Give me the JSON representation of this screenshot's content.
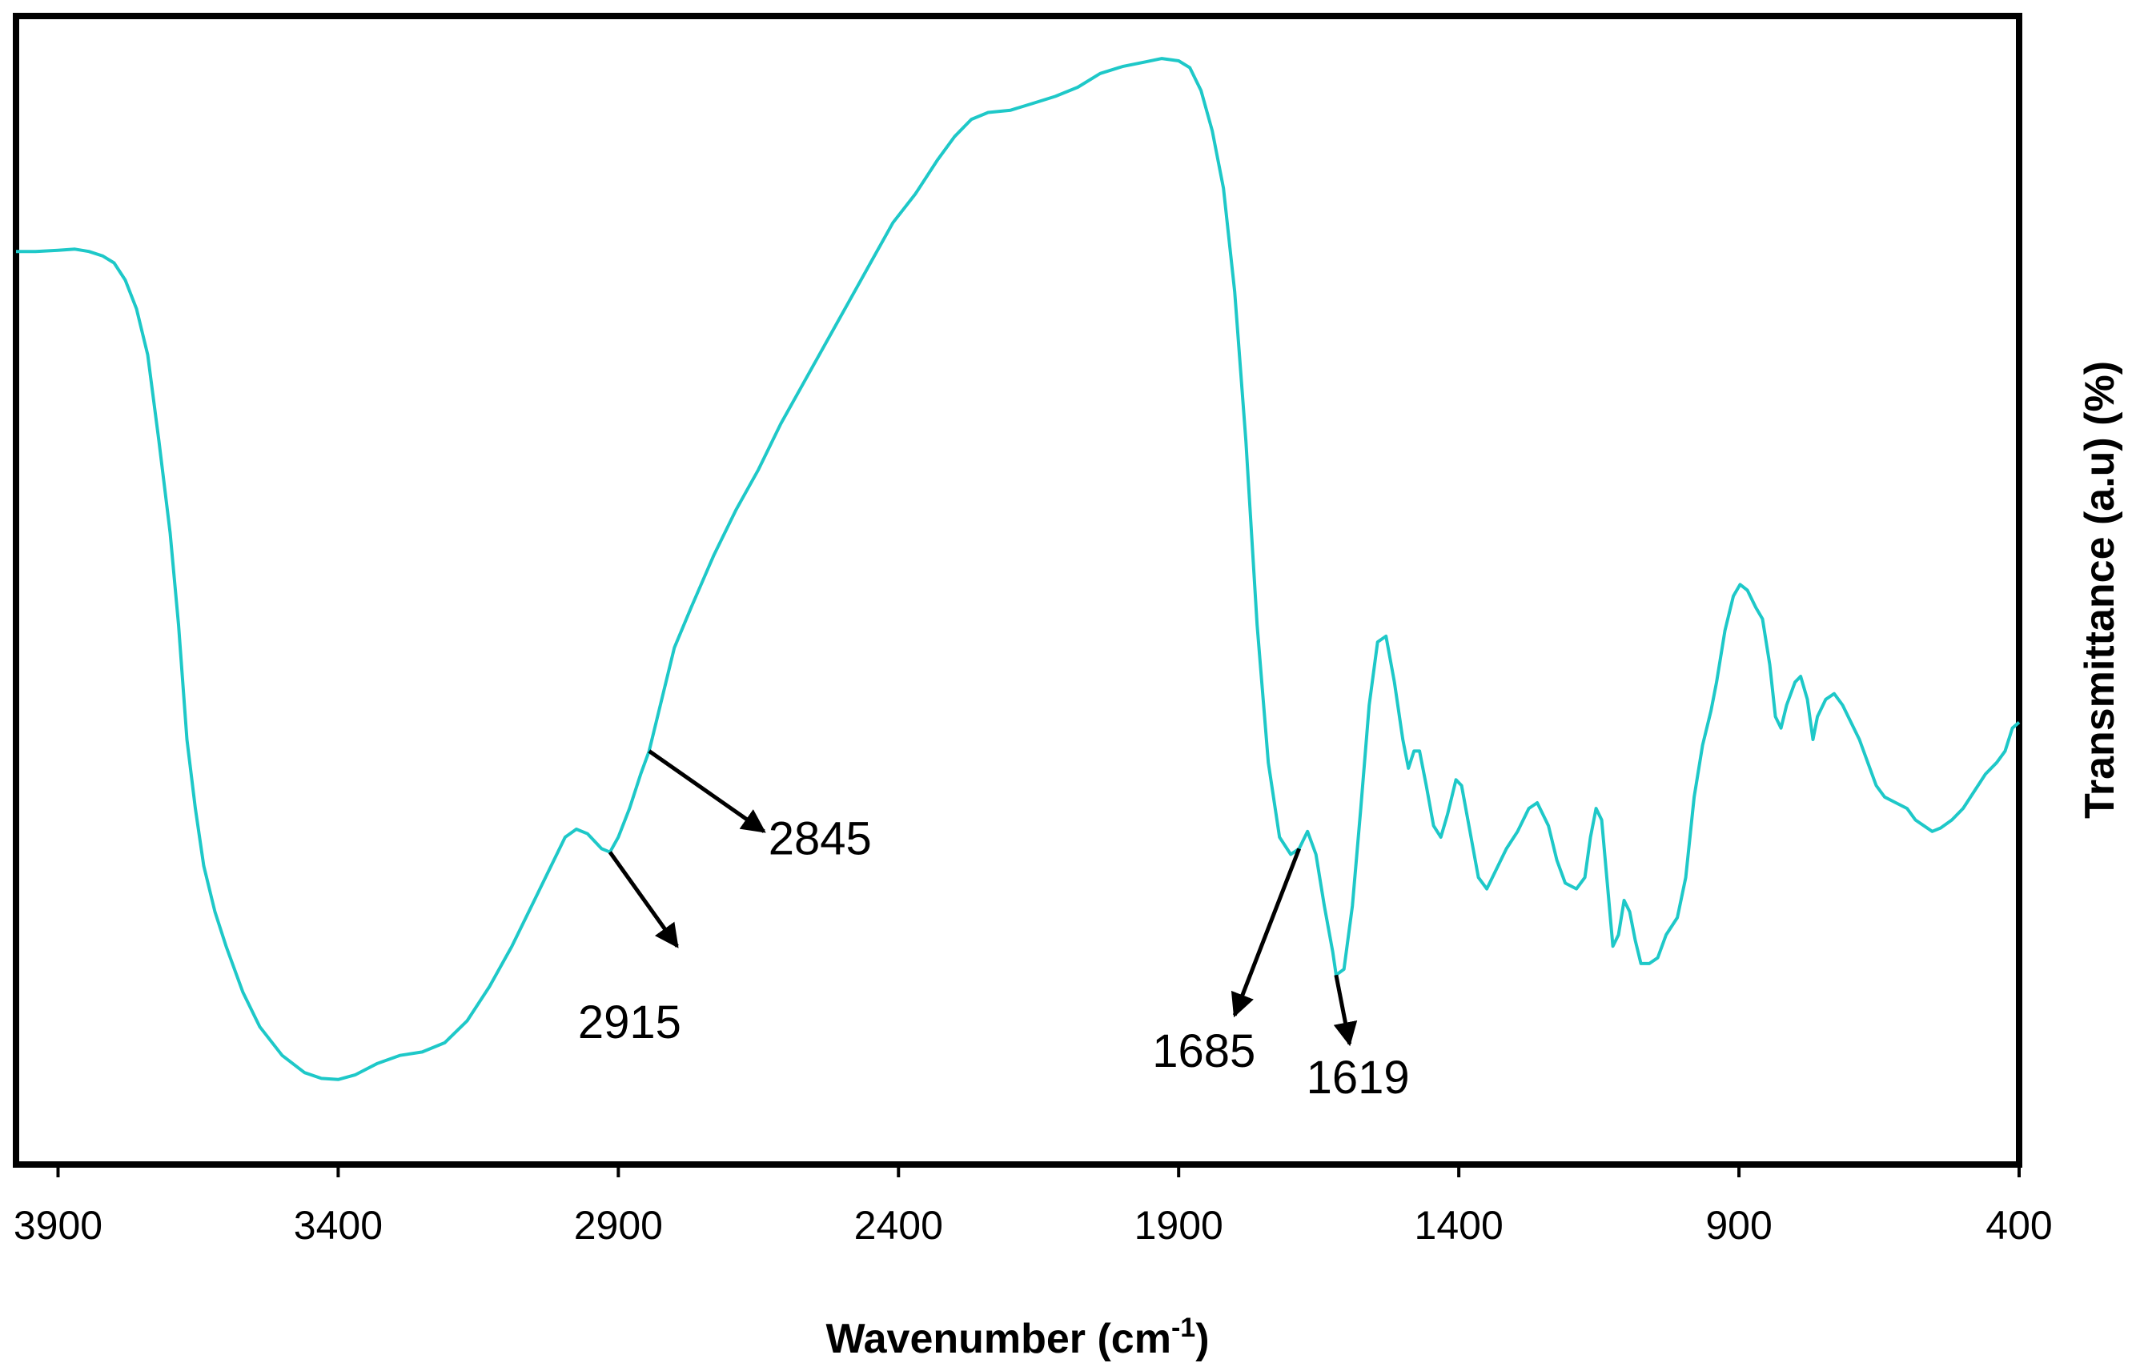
{
  "chart_data": {
    "type": "line",
    "xlabel": "Wavenumber (cm",
    "xlabel_superscript": "-1",
    "xlabel_close": ")",
    "ylabel": "Transmittance (a.u) (%)",
    "xlim": [
      3975,
      400
    ],
    "ylim": [
      0,
      100
    ],
    "x_reversed": true,
    "y_ticks_shown": false,
    "grid": false,
    "x_ticks": [
      3900,
      3400,
      2900,
      2400,
      1900,
      1400,
      900,
      400
    ],
    "x_tick_labels": [
      "3900",
      "3400",
      "2900",
      "2400",
      "1900",
      "1400",
      "900",
      "400"
    ],
    "series": [
      {
        "color": "#1ec8c8",
        "points": [
          [
            3975,
            79.5
          ],
          [
            3940,
            79.5
          ],
          [
            3900,
            79.6
          ],
          [
            3870,
            79.7
          ],
          [
            3845,
            79.5
          ],
          [
            3820,
            79.1
          ],
          [
            3800,
            78.5
          ],
          [
            3780,
            77.0
          ],
          [
            3760,
            74.5
          ],
          [
            3740,
            70.5
          ],
          [
            3720,
            63.0
          ],
          [
            3700,
            55.0
          ],
          [
            3685,
            47.0
          ],
          [
            3670,
            37.0
          ],
          [
            3655,
            31.0
          ],
          [
            3640,
            26.0
          ],
          [
            3620,
            22.0
          ],
          [
            3600,
            19.0
          ],
          [
            3570,
            15.0
          ],
          [
            3540,
            12.0
          ],
          [
            3500,
            9.5
          ],
          [
            3460,
            8.0
          ],
          [
            3430,
            7.5
          ],
          [
            3400,
            7.4
          ],
          [
            3370,
            7.8
          ],
          [
            3330,
            8.8
          ],
          [
            3290,
            9.5
          ],
          [
            3250,
            9.8
          ],
          [
            3210,
            10.6
          ],
          [
            3170,
            12.5
          ],
          [
            3130,
            15.5
          ],
          [
            3090,
            19.0
          ],
          [
            3050,
            23.0
          ],
          [
            3020,
            26.0
          ],
          [
            2995,
            28.5
          ],
          [
            2975,
            29.2
          ],
          [
            2955,
            28.8
          ],
          [
            2930,
            27.5
          ],
          [
            2915,
            27.2
          ],
          [
            2900,
            28.5
          ],
          [
            2880,
            31.0
          ],
          [
            2860,
            34.0
          ],
          [
            2845,
            36.0
          ],
          [
            2825,
            40.0
          ],
          [
            2800,
            45.0
          ],
          [
            2770,
            48.5
          ],
          [
            2730,
            53.0
          ],
          [
            2690,
            57.0
          ],
          [
            2650,
            60.5
          ],
          [
            2610,
            64.5
          ],
          [
            2570,
            68.0
          ],
          [
            2530,
            71.5
          ],
          [
            2490,
            75.0
          ],
          [
            2450,
            78.5
          ],
          [
            2410,
            82.0
          ],
          [
            2370,
            84.5
          ],
          [
            2330,
            87.5
          ],
          [
            2300,
            89.5
          ],
          [
            2270,
            91.0
          ],
          [
            2240,
            91.6
          ],
          [
            2200,
            91.8
          ],
          [
            2160,
            92.4
          ],
          [
            2120,
            93.0
          ],
          [
            2080,
            93.8
          ],
          [
            2040,
            95.0
          ],
          [
            2000,
            95.6
          ],
          [
            1960,
            96.0
          ],
          [
            1930,
            96.3
          ],
          [
            1900,
            96.1
          ],
          [
            1880,
            95.5
          ],
          [
            1860,
            93.5
          ],
          [
            1840,
            90.0
          ],
          [
            1820,
            85.0
          ],
          [
            1800,
            76.0
          ],
          [
            1780,
            63.0
          ],
          [
            1760,
            47.0
          ],
          [
            1740,
            35.0
          ],
          [
            1720,
            28.5
          ],
          [
            1700,
            27.0
          ],
          [
            1685,
            27.5
          ],
          [
            1670,
            29.0
          ],
          [
            1655,
            27.0
          ],
          [
            1640,
            22.5
          ],
          [
            1625,
            18.5
          ],
          [
            1619,
            16.5
          ],
          [
            1605,
            17.0
          ],
          [
            1590,
            22.5
          ],
          [
            1575,
            31.0
          ],
          [
            1560,
            40.0
          ],
          [
            1545,
            45.5
          ],
          [
            1530,
            46.0
          ],
          [
            1515,
            42.0
          ],
          [
            1500,
            37.0
          ],
          [
            1490,
            34.5
          ],
          [
            1480,
            36.0
          ],
          [
            1470,
            36.0
          ],
          [
            1458,
            33.0
          ],
          [
            1445,
            29.5
          ],
          [
            1432,
            28.5
          ],
          [
            1420,
            30.5
          ],
          [
            1405,
            33.5
          ],
          [
            1395,
            33.0
          ],
          [
            1380,
            29.0
          ],
          [
            1365,
            25.0
          ],
          [
            1350,
            24.0
          ],
          [
            1335,
            25.5
          ],
          [
            1315,
            27.5
          ],
          [
            1295,
            29.0
          ],
          [
            1275,
            31.0
          ],
          [
            1260,
            31.5
          ],
          [
            1240,
            29.5
          ],
          [
            1225,
            26.5
          ],
          [
            1210,
            24.5
          ],
          [
            1190,
            24.0
          ],
          [
            1175,
            25.0
          ],
          [
            1165,
            28.5
          ],
          [
            1155,
            31.0
          ],
          [
            1145,
            30.0
          ],
          [
            1135,
            24.5
          ],
          [
            1125,
            19.0
          ],
          [
            1115,
            20.0
          ],
          [
            1105,
            23.0
          ],
          [
            1095,
            22.0
          ],
          [
            1085,
            19.5
          ],
          [
            1075,
            17.5
          ],
          [
            1060,
            17.5
          ],
          [
            1045,
            18.0
          ],
          [
            1030,
            20.0
          ],
          [
            1010,
            21.5
          ],
          [
            995,
            25.0
          ],
          [
            980,
            32.0
          ],
          [
            965,
            36.5
          ],
          [
            950,
            39.5
          ],
          [
            940,
            42.0
          ],
          [
            925,
            46.5
          ],
          [
            910,
            49.5
          ],
          [
            898,
            50.5
          ],
          [
            885,
            50.0
          ],
          [
            870,
            48.5
          ],
          [
            858,
            47.5
          ],
          [
            845,
            43.5
          ],
          [
            835,
            39.0
          ],
          [
            825,
            38.0
          ],
          [
            815,
            40.0
          ],
          [
            800,
            42.0
          ],
          [
            790,
            42.5
          ],
          [
            778,
            40.5
          ],
          [
            768,
            37.0
          ],
          [
            760,
            39.0
          ],
          [
            745,
            40.5
          ],
          [
            730,
            41.0
          ],
          [
            715,
            40.0
          ],
          [
            700,
            38.5
          ],
          [
            685,
            37.0
          ],
          [
            670,
            35.0
          ],
          [
            655,
            33.0
          ],
          [
            640,
            32.0
          ],
          [
            620,
            31.5
          ],
          [
            600,
            31.0
          ],
          [
            585,
            30.0
          ],
          [
            570,
            29.5
          ],
          [
            555,
            29.0
          ],
          [
            540,
            29.3
          ],
          [
            520,
            30.0
          ],
          [
            500,
            31.0
          ],
          [
            480,
            32.5
          ],
          [
            460,
            34.0
          ],
          [
            440,
            35.0
          ],
          [
            425,
            36.0
          ],
          [
            412,
            38.0
          ],
          [
            400,
            38.5
          ]
        ]
      }
    ],
    "annotations": [
      {
        "label": "2845",
        "arrow_from": [
          2845,
          36.0
        ],
        "arrow_to": [
          2640,
          29.0
        ],
        "text_at": [
          2540,
          27.0
        ]
      },
      {
        "label": "2915",
        "arrow_from": [
          2915,
          27.2
        ],
        "arrow_to": [
          2795,
          19.0
        ],
        "text_at": [
          2880,
          11.0
        ]
      },
      {
        "label": "1685",
        "arrow_from": [
          1685,
          27.5
        ],
        "arrow_to": [
          1800,
          13.0
        ],
        "text_at": [
          1855,
          8.5
        ]
      },
      {
        "label": "1619",
        "arrow_from": [
          1619,
          16.5
        ],
        "arrow_to": [
          1595,
          10.5
        ],
        "text_at": [
          1580,
          6.2
        ]
      }
    ]
  }
}
